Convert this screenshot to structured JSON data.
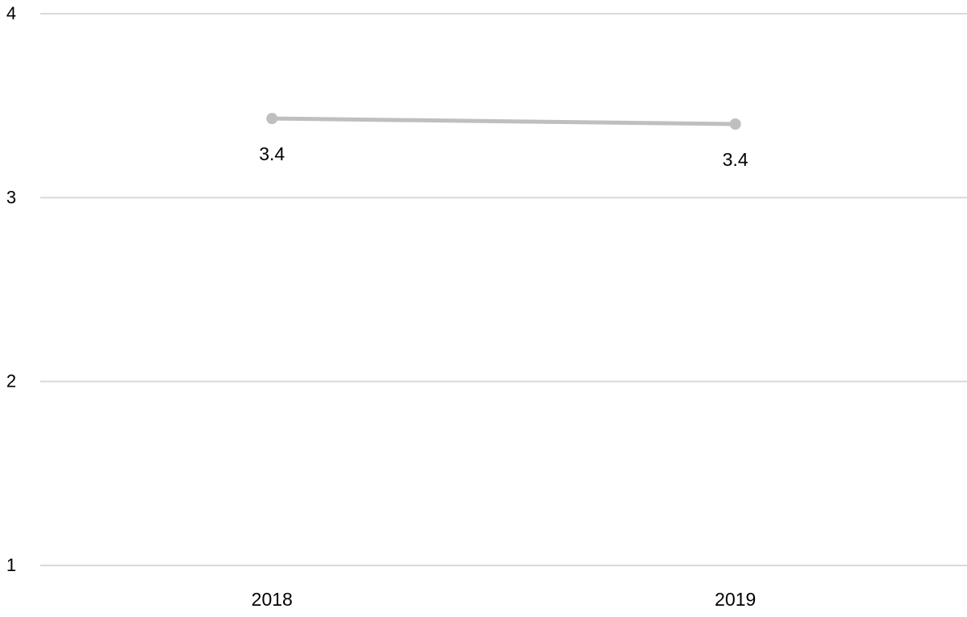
{
  "chart_data": {
    "type": "line",
    "title": "",
    "xlabel": "",
    "ylabel": "",
    "categories": [
      "2018",
      "2019"
    ],
    "series": [
      {
        "values": [
          3.43,
          3.4
        ],
        "data_labels": [
          "3.4",
          "3.4"
        ],
        "color": "#BFBFBF"
      }
    ],
    "ylim": [
      1,
      4
    ],
    "yticks": [
      1,
      2,
      3,
      4
    ],
    "ytick_labels": [
      "1",
      "2",
      "3",
      "4"
    ],
    "grid": true,
    "grid_color": "#D9D9D9",
    "legend": "none"
  }
}
